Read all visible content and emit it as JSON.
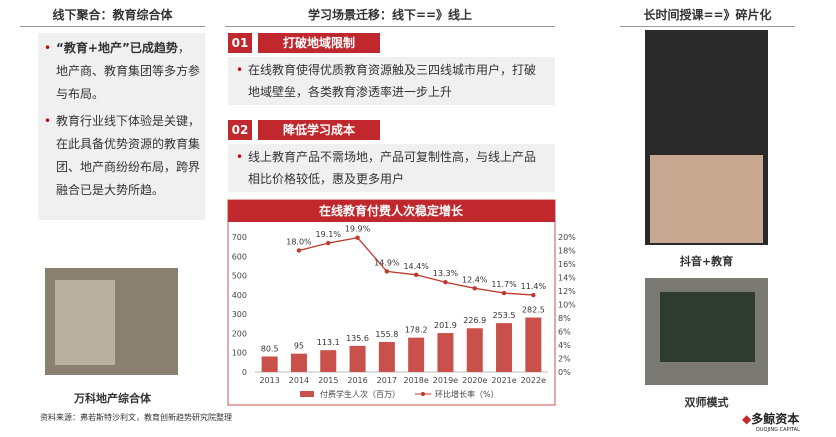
{
  "left": {
    "header": "线下聚合：教育综合体",
    "bullets": [
      {
        "bold": "“教育+地产”已成趋势",
        "text": "，地产商、教育集团等多方参与布局。"
      },
      {
        "text": "教育行业线下体验是关键，在此具备优势资源的教育集团、地产商纷纷布局，跨界融合已是大势所趋。"
      }
    ],
    "caption": "万科地产综合体"
  },
  "middle": {
    "header": "学习场景迁移：线下==》线上",
    "sections": [
      {
        "number": "01",
        "title": "打破地域限制",
        "text": "在线教育使得优质教育资源触及三四线城市用户，打破地域壁垒，各类教育渗透率进一步上升"
      },
      {
        "number": "02",
        "title": "降低学习成本",
        "text": "线上教育产品不需场地，产品可复制性高，与线上产品相比价格较低，惠及更多用户"
      }
    ]
  },
  "right": {
    "header": "长时间授课==》碎片化",
    "captions": [
      "抖音+教育",
      "双师模式"
    ]
  },
  "source": "资料来源：弗若斯特沙利文，教育创新趋势研究院整理",
  "logo": {
    "name": "多鲸资本",
    "sub": "DUOJING CAPITAL"
  },
  "chart_data": {
    "type": "bar",
    "title": "在线教育付费人次稳定增长",
    "categories": [
      "2013",
      "2014",
      "2015",
      "2016",
      "2017",
      "2018e",
      "2019e",
      "2020e",
      "2021e",
      "2022e"
    ],
    "series": [
      {
        "name": "付费学生人次（百万）",
        "color": "#c9504b",
        "values": [
          80.5,
          95,
          113.1,
          135.6,
          155.8,
          178.2,
          201.9,
          226.9,
          253.5,
          282.5
        ]
      },
      {
        "name": "环比增长率（%）",
        "color": "#c0392b",
        "type": "line",
        "axis": "y2",
        "values": [
          null,
          18.0,
          19.1,
          19.9,
          14.9,
          14.4,
          13.3,
          12.4,
          11.7,
          11.4
        ],
        "value_labels": [
          null,
          "18.0%",
          "19.1%",
          "19.9%",
          "14.9%",
          "14.4%",
          "13.3%",
          "12.4%",
          "11.7%",
          "11.4%"
        ]
      }
    ],
    "ylim": [
      0,
      700
    ],
    "yticks": [
      0,
      100,
      200,
      300,
      400,
      500,
      600,
      700
    ],
    "y2lim": [
      0,
      20
    ],
    "y2ticks": [
      {
        "value": 0,
        "label": "0%"
      },
      {
        "value": 2,
        "label": "2%"
      },
      {
        "value": 4,
        "label": "4%"
      },
      {
        "value": 6,
        "label": "6%"
      },
      {
        "value": 8,
        "label": "8%"
      },
      {
        "value": 10,
        "label": "10%"
      },
      {
        "value": 12,
        "label": "12%"
      },
      {
        "value": 14,
        "label": "14%"
      },
      {
        "value": 16,
        "label": "16%"
      },
      {
        "value": 18,
        "label": "18%"
      },
      {
        "value": 20,
        "label": "20%"
      }
    ]
  }
}
